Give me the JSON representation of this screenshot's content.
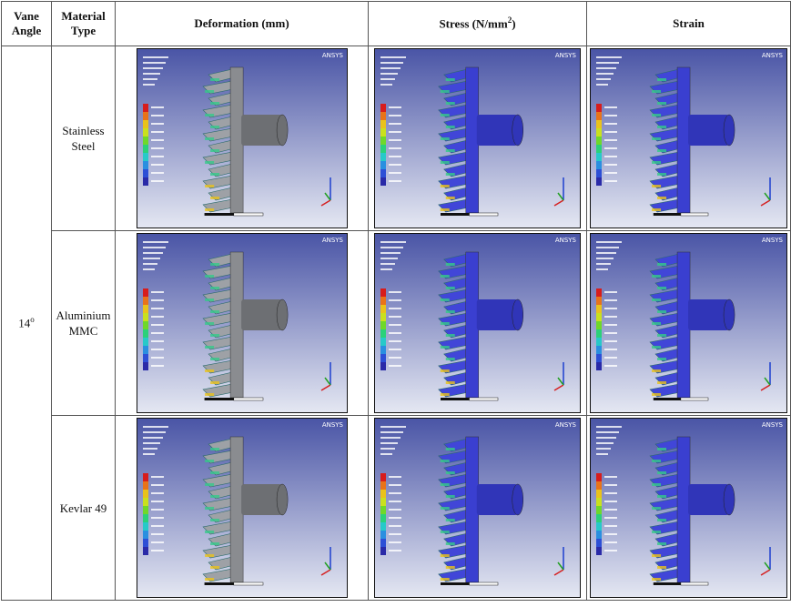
{
  "header": {
    "vane_angle": "Vane Angle",
    "material_type": "Material Type",
    "deformation": "Deformation (mm)",
    "stress": {
      "text": "Stress (N/mm",
      "sup": "2",
      "tail": ")"
    },
    "strain": "Strain"
  },
  "vane_angle": {
    "base": "14",
    "sup": "o"
  },
  "materials": [
    "Stainless Steel",
    "Aluminium MMC",
    "Kevlar 49"
  ],
  "image_logo": "ANSYS"
}
